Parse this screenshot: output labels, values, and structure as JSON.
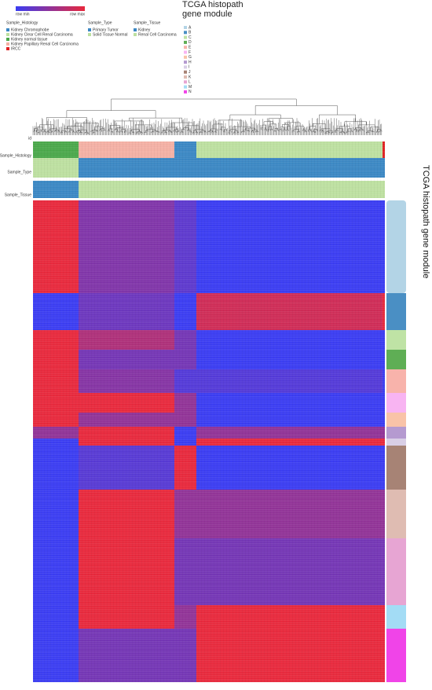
{
  "colorbar": {
    "min_label": "row min",
    "max_label": "row max",
    "colors": [
      "#3a3cf2",
      "#e8283c"
    ]
  },
  "legends": [
    {
      "title": "Sample_Histology",
      "items": [
        {
          "label": "Kidney Chromophobe",
          "color": "#3a87c4"
        },
        {
          "label": "Kidney Clear Cell Renal Carcinoma",
          "color": "#bde0a0"
        },
        {
          "label": "Kidney normal tissue",
          "color": "#4aa84a"
        },
        {
          "label": "Kidney Papillary Renal Cell Carcinoma",
          "color": "#f4b0a4"
        },
        {
          "label": "IRCC",
          "color": "#e02020"
        }
      ]
    },
    {
      "title": "Sample_Type",
      "items": [
        {
          "label": "Primary Tumor",
          "color": "#3a87c4"
        },
        {
          "label": "Solid Tissue Normal",
          "color": "#bde0a0"
        }
      ]
    },
    {
      "title": "Sample_Tissue",
      "items": [
        {
          "label": "Kidney",
          "color": "#3a87c4"
        },
        {
          "label": "Renal Cell Carcinoma",
          "color": "#bde0a0"
        }
      ]
    }
  ],
  "module_legend": {
    "title": "TCGA histopath gene module",
    "items": [
      {
        "label": "A",
        "color": "#b3d4e6"
      },
      {
        "label": "B",
        "color": "#4a8fc4"
      },
      {
        "label": "C",
        "color": "#bfe3a5"
      },
      {
        "label": "D",
        "color": "#5fae55"
      },
      {
        "label": "E",
        "color": "#f8b3ab"
      },
      {
        "label": "F",
        "color": "#f8b4f2"
      },
      {
        "label": "G",
        "color": "#f9c3a8"
      },
      {
        "label": "H",
        "color": "#b59ad0"
      },
      {
        "label": "I",
        "color": "#d9cfe6"
      },
      {
        "label": "J",
        "color": "#a78375"
      },
      {
        "label": "K",
        "color": "#dfbcb2"
      },
      {
        "label": "L",
        "color": "#e7a5d3"
      },
      {
        "label": "M",
        "color": "#a3dcf5"
      },
      {
        "label": "N",
        "color": "#f044e8"
      }
    ]
  },
  "track_labels": [
    "id",
    "Sample_Histology",
    "Sample_Type",
    "Sample_Tissue"
  ],
  "side_label": "TCGA histopath gene module",
  "chart_data": {
    "type": "heatmap",
    "values": [
      [
        0.8,
        0.5,
        0.4,
        0.3,
        0.3
      ],
      [
        0.3,
        0.4,
        0.3,
        0.6,
        0.65
      ],
      [
        0.6,
        0.5,
        0.4,
        0.3,
        0.3
      ],
      [
        0.7,
        0.5,
        0.5,
        0.4,
        0.4
      ],
      [
        0.8,
        0.6,
        0.5,
        0.5,
        0.45
      ],
      [
        0.7,
        0.7,
        0.6,
        0.5,
        0.5
      ],
      [
        0.6,
        0.5,
        0.5,
        0.4,
        0.4
      ],
      [
        0.5,
        0.55,
        0.45,
        0.5,
        0.5
      ],
      [
        0.2,
        0.3,
        0.2,
        0.3,
        0.3
      ],
      [
        0.1,
        0.15,
        0.4,
        0.1,
        0.1
      ],
      [
        0.4,
        0.6,
        0.5,
        0.5,
        0.5
      ],
      [
        0.4,
        0.7,
        0.5,
        0.5,
        0.5
      ],
      [
        0.3,
        0.5,
        0.4,
        0.5,
        0.5
      ],
      [
        0.3,
        0.4,
        0.4,
        0.6,
        0.6
      ]
    ]
  }
}
